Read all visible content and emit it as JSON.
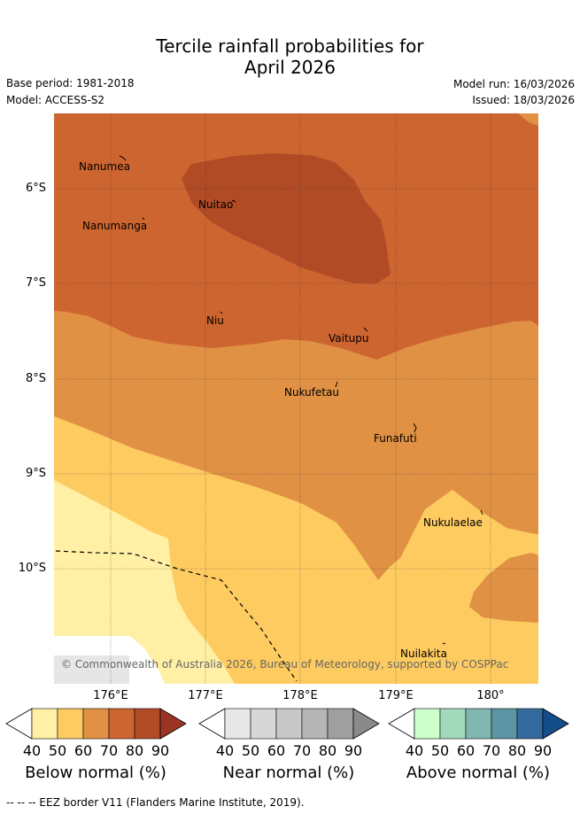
{
  "title_line1": "Tercile rainfall probabilities for",
  "title_line2": "April 2026",
  "base_period": "Base period: 1981-2018",
  "model": "Model: ACCESS-S2",
  "model_run": "Model run: 16/03/2026",
  "issued": "Issued: 18/03/2026",
  "lat_labels": [
    "6°S",
    "7°S",
    "8°S",
    "9°S",
    "10°S"
  ],
  "lon_labels": [
    "176°E",
    "177°E",
    "178°E",
    "179°E",
    "180°"
  ],
  "islands": [
    "Nanumea",
    "Nuitao",
    "Nanumanga",
    "Niu",
    "Vaitupu",
    "Nukufetau",
    "Funafuti",
    "Nukulaelae",
    "Nuilakita"
  ],
  "copyright": "© Commonwealth of Australia 2026, Bureau of Meteorology, supported by COSPPac",
  "colorbars": [
    {
      "label": "Below normal (%)",
      "ticks": [
        "40",
        "50",
        "60",
        "70",
        "80",
        "90"
      ],
      "colors": [
        "#fff0a5",
        "#fecb60",
        "#e09144",
        "#cd6530",
        "#b04b26",
        "#9a3523"
      ]
    },
    {
      "label": "Near normal (%)",
      "ticks": [
        "40",
        "50",
        "60",
        "70",
        "80",
        "90"
      ],
      "colors": [
        "#e8e8e8",
        "#d7d7d7",
        "#c8c8c8",
        "#b5b5b5",
        "#a0a0a0",
        "#8a8a8a"
      ]
    },
    {
      "label": "Above normal (%)",
      "ticks": [
        "40",
        "50",
        "60",
        "70",
        "80",
        "90"
      ],
      "colors": [
        "#ccffcc",
        "#a3d9bd",
        "#80b8b1",
        "#5d94a3",
        "#346b9e",
        "#144d8a"
      ]
    }
  ],
  "footer": "--  --  -- EEZ border V11 (Flanders Marine Institute, 2019)."
}
